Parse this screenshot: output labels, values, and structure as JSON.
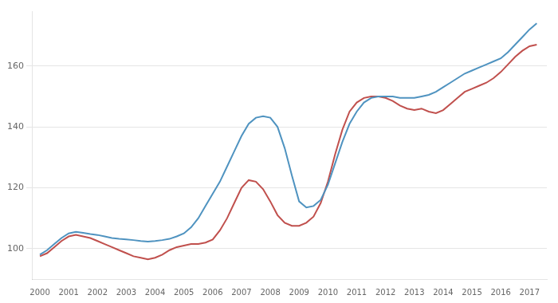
{
  "chart_data": {
    "type": "line",
    "x": [
      2000.0,
      2000.25,
      2000.5,
      2000.75,
      2001.0,
      2001.25,
      2001.5,
      2001.75,
      2002.0,
      2002.25,
      2002.5,
      2002.75,
      2003.0,
      2003.25,
      2003.5,
      2003.75,
      2004.0,
      2004.25,
      2004.5,
      2004.75,
      2005.0,
      2005.25,
      2005.5,
      2005.75,
      2006.0,
      2006.25,
      2006.5,
      2006.75,
      2007.0,
      2007.25,
      2007.5,
      2007.75,
      2008.0,
      2008.25,
      2008.5,
      2008.75,
      2009.0,
      2009.25,
      2009.5,
      2009.75,
      2010.0,
      2010.25,
      2010.5,
      2010.75,
      2011.0,
      2011.25,
      2011.5,
      2011.75,
      2012.0,
      2012.25,
      2012.5,
      2012.75,
      2013.0,
      2013.25,
      2013.5,
      2013.75,
      2014.0,
      2014.25,
      2014.5,
      2014.75,
      2015.0,
      2015.25,
      2015.5,
      2015.75,
      2016.0,
      2016.25,
      2016.5,
      2016.75,
      2017.0,
      2017.25
    ],
    "series": [
      {
        "color": "#4f93c0",
        "values": [
          98.0,
          99.5,
          101.5,
          103.5,
          105.0,
          105.5,
          105.2,
          104.8,
          104.5,
          104.0,
          103.5,
          103.2,
          103.0,
          102.8,
          102.5,
          102.3,
          102.5,
          102.8,
          103.2,
          104.0,
          105.0,
          107.0,
          110.0,
          114.0,
          118.0,
          122.0,
          127.0,
          132.0,
          137.0,
          141.0,
          143.0,
          143.5,
          143.0,
          140.0,
          133.0,
          124.0,
          115.5,
          113.5,
          114.0,
          116.0,
          121.0,
          128.0,
          135.0,
          141.0,
          145.0,
          148.0,
          149.5,
          150.0,
          150.0,
          150.0,
          149.5,
          149.5,
          149.5,
          150.0,
          150.5,
          151.5,
          153.0,
          154.5,
          156.0,
          157.5,
          158.5,
          159.5,
          160.5,
          161.5,
          162.5,
          164.5,
          167.0,
          169.5,
          172.0,
          174.0
        ]
      },
      {
        "color": "#c0504d",
        "values": [
          97.5,
          98.5,
          100.5,
          102.5,
          104.0,
          104.5,
          104.0,
          103.5,
          102.5,
          101.5,
          100.5,
          99.5,
          98.5,
          97.5,
          97.0,
          96.5,
          97.0,
          98.0,
          99.5,
          100.5,
          101.0,
          101.5,
          101.5,
          102.0,
          103.0,
          106.0,
          110.0,
          115.0,
          120.0,
          122.5,
          122.0,
          119.5,
          115.5,
          111.0,
          108.5,
          107.5,
          107.5,
          108.5,
          110.5,
          115.0,
          122.0,
          131.0,
          139.0,
          145.0,
          148.0,
          149.5,
          150.0,
          150.0,
          149.5,
          148.5,
          147.0,
          146.0,
          145.5,
          146.0,
          145.0,
          144.5,
          145.5,
          147.5,
          149.5,
          151.5,
          152.5,
          153.5,
          154.5,
          156.0,
          158.0,
          160.5,
          163.0,
          165.0,
          166.5,
          167.0
        ]
      }
    ],
    "xlim": [
      1999.75,
      2017.6
    ],
    "ylim": [
      90,
      178
    ],
    "xticks": [
      2000,
      2001,
      2002,
      2003,
      2004,
      2005,
      2006,
      2007,
      2008,
      2009,
      2010,
      2011,
      2012,
      2013,
      2014,
      2015,
      2016,
      2017
    ],
    "yticks": [
      100,
      120,
      140,
      160
    ],
    "grid": "y"
  }
}
